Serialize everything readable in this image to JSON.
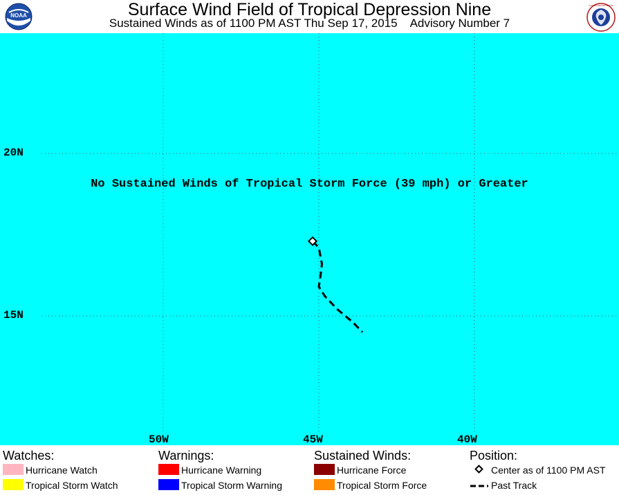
{
  "header": {
    "title": "Surface Wind Field of Tropical Depression Nine",
    "subtitle": "Sustained Winds as of 1100 PM AST Thu Sep 17, 2015    Advisory Number 7",
    "logo_left_text": "NOAA",
    "logo_right_text": "NATIONAL WEATHER SERVICE"
  },
  "map": {
    "ocean_color": "#00ffff",
    "lat_labels": {
      "n20": "20N",
      "n15": "15N"
    },
    "lon_labels": {
      "w50": "50W",
      "w45": "45W",
      "w40": "40W"
    },
    "message": "No Sustained Winds of Tropical Storm Force (39 mph) or Greater",
    "storm_center": {
      "lat": 17.3,
      "lon": 45.2
    },
    "past_track": [
      {
        "lat": 17.3,
        "lon": 45.2
      },
      {
        "lat": 17.1,
        "lon": 45.0
      },
      {
        "lat": 16.6,
        "lon": 44.9
      },
      {
        "lat": 16.2,
        "lon": 44.95
      },
      {
        "lat": 15.9,
        "lon": 45.0
      },
      {
        "lat": 15.6,
        "lon": 44.8
      },
      {
        "lat": 15.2,
        "lon": 44.4
      },
      {
        "lat": 14.8,
        "lon": 43.9
      },
      {
        "lat": 14.5,
        "lon": 43.6
      }
    ]
  },
  "legend": {
    "watches": {
      "heading": "Watches:",
      "items": [
        {
          "label": "Hurricane Watch",
          "color": "#ffb6c1"
        },
        {
          "label": "Tropical Storm Watch",
          "color": "#ffff00"
        }
      ]
    },
    "warnings": {
      "heading": "Warnings:",
      "items": [
        {
          "label": "Hurricane Warning",
          "color": "#ff0000"
        },
        {
          "label": "Tropical Storm Warning",
          "color": "#0000ff"
        }
      ]
    },
    "winds": {
      "heading": "Sustained Winds:",
      "items": [
        {
          "label": "Hurricane Force",
          "color": "#8b0000"
        },
        {
          "label": "Tropical Storm Force",
          "color": "#ff8c00"
        }
      ]
    },
    "position": {
      "heading": "Position:",
      "center_label": "Center as of 1100 PM AST",
      "track_label": "Past Track"
    }
  }
}
